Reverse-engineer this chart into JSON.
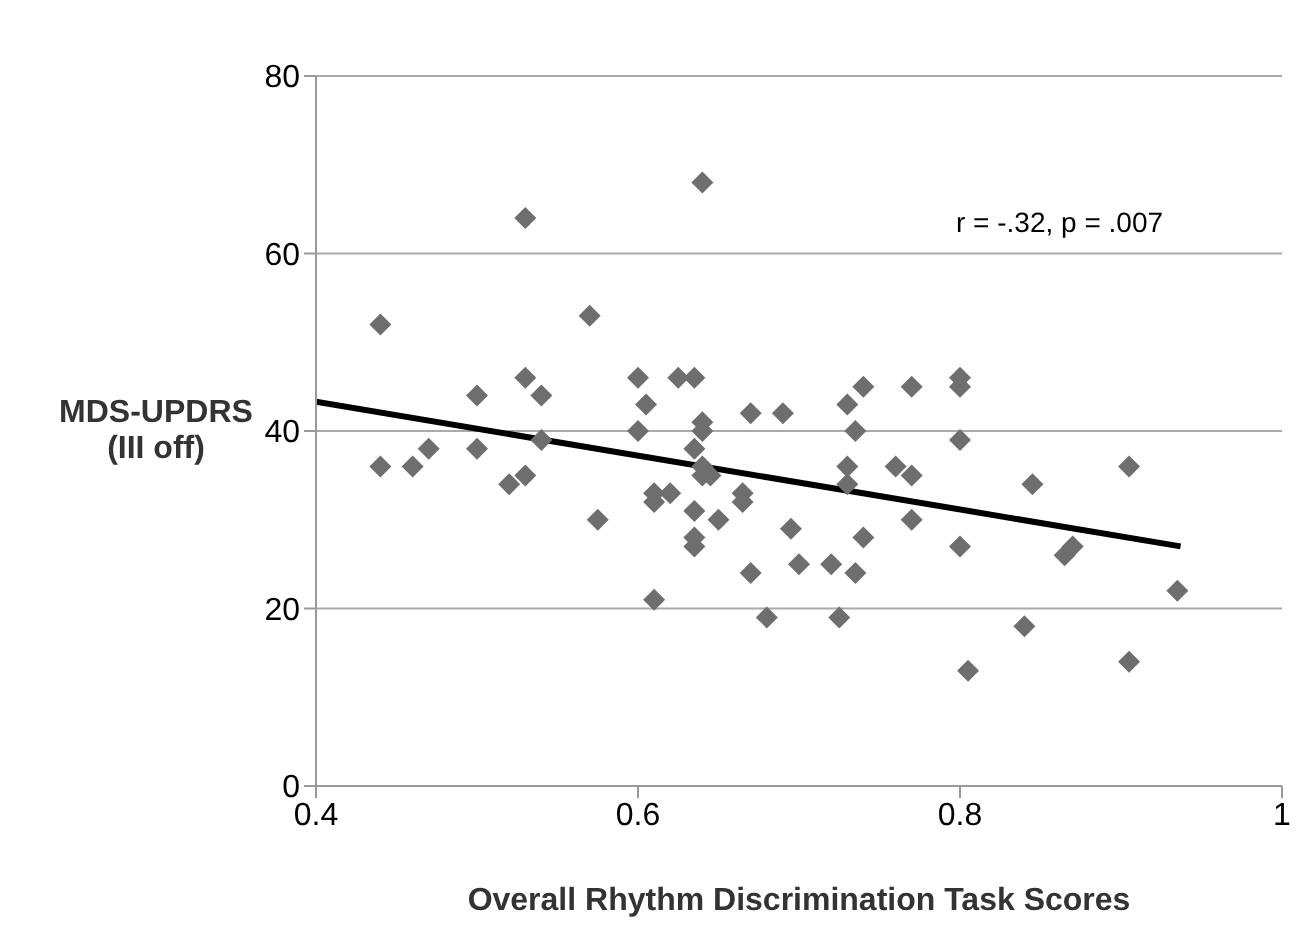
{
  "chart_data": {
    "type": "scatter",
    "xlabel": "Overall Rhythm Discrimination Task Scores",
    "ylabel": "MDS-UPDRS (III off)",
    "annotations": [
      "r = -.32, p = .007"
    ],
    "xlim": [
      0.4,
      1
    ],
    "xticks": [
      0.4,
      0.6,
      0.8,
      1
    ],
    "ylim": [
      0,
      80
    ],
    "yticks": [
      0,
      20,
      40,
      60,
      80
    ],
    "grid": "y",
    "series": [
      {
        "marker": "diamond",
        "color": "#6e6e6e",
        "x": [
          0.44,
          0.44,
          0.46,
          0.47,
          0.5,
          0.5,
          0.52,
          0.53,
          0.53,
          0.53,
          0.54,
          0.54,
          0.57,
          0.575,
          0.6,
          0.6,
          0.605,
          0.61,
          0.61,
          0.61,
          0.62,
          0.625,
          0.635,
          0.635,
          0.635,
          0.635,
          0.635,
          0.64,
          0.64,
          0.64,
          0.64,
          0.64,
          0.645,
          0.65,
          0.665,
          0.665,
          0.67,
          0.67,
          0.68,
          0.69,
          0.695,
          0.7,
          0.72,
          0.725,
          0.73,
          0.73,
          0.73,
          0.735,
          0.735,
          0.74,
          0.74,
          0.76,
          0.77,
          0.77,
          0.77,
          0.8,
          0.8,
          0.8,
          0.8,
          0.805,
          0.84,
          0.845,
          0.865,
          0.87,
          0.905,
          0.905,
          0.935
        ],
        "values": [
          52,
          36,
          36,
          38,
          44,
          38,
          34,
          46,
          35,
          64,
          44,
          39,
          53,
          30,
          40,
          46,
          43,
          32,
          33,
          21,
          33,
          46,
          46,
          38,
          31,
          28,
          27,
          68,
          41,
          40,
          36,
          35,
          35,
          30,
          33,
          32,
          42,
          24,
          19,
          42,
          29,
          25,
          25,
          19,
          43,
          36,
          34,
          40,
          24,
          45,
          28,
          36,
          45,
          35,
          30,
          46,
          39,
          45,
          27,
          13,
          18,
          34,
          26,
          27,
          36,
          14,
          22
        ]
      },
      {
        "type": "line",
        "marker": "none",
        "color": "#000000",
        "x": [
          0.4,
          0.937
        ],
        "values": [
          43.3,
          27
        ]
      }
    ]
  }
}
